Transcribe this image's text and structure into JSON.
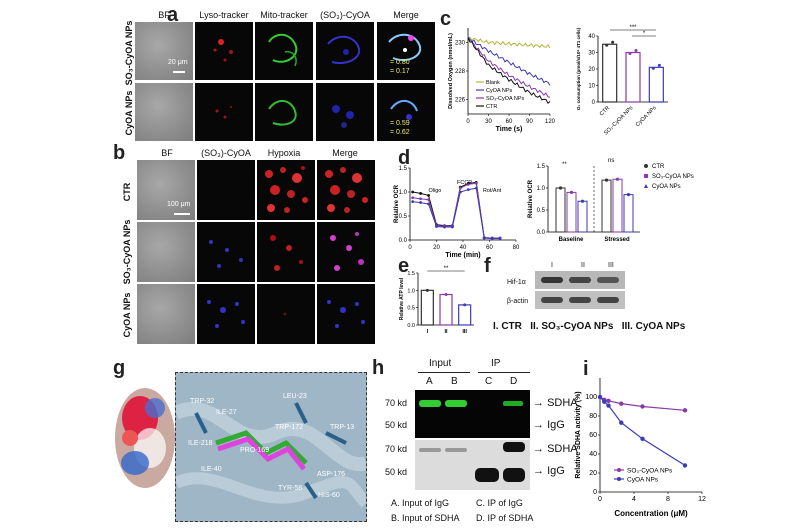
{
  "panel_a": {
    "label": "a",
    "headers": [
      "BF",
      "Lyso-tracker",
      "Mito-tracker",
      "(SO₃)-CyOA",
      "Merge"
    ],
    "rows": [
      "SO₃-CyOA NPs",
      "CyOA NPs"
    ],
    "scale_bar": "20 μm",
    "coloc_row1": [
      "= 0.80",
      "= 0.17"
    ],
    "coloc_row2": [
      "= 0.59",
      "= 0.62"
    ]
  },
  "panel_b": {
    "label": "b",
    "headers": [
      "BF",
      "(SO₃)-CyOA",
      "Hypoxia",
      "Merge"
    ],
    "rows": [
      "CTR",
      "SO₃-CyOA NPs",
      "CyOA NPs"
    ],
    "scale_bar": "100 μm"
  },
  "panel_c": {
    "label": "c"
  },
  "panel_d": {
    "label": "d"
  },
  "panel_e": {
    "label": "e"
  },
  "panel_f": {
    "label": "f",
    "lanes": [
      "I",
      "II",
      "III"
    ],
    "bands": [
      "Hif-1α",
      "β-actin"
    ],
    "caption": "I. CTR   II. SO₃-CyOA NPs   III. CyOA NPs"
  },
  "panel_g": {
    "label": "g",
    "residues": [
      "TRP-32",
      "ILE-27",
      "LEU-23",
      "TRP-172",
      "TRP-13",
      "ILE-218",
      "PRO-169",
      "ILE-40",
      "ASP-176",
      "TYR-58",
      "HIS-60"
    ]
  },
  "panel_h": {
    "label": "h",
    "group_input": "Input",
    "group_ip": "IP",
    "lanes": [
      "A",
      "B",
      "C",
      "D"
    ],
    "markers": [
      "70 kd",
      "50 kd",
      "70 kd",
      "50 kd"
    ],
    "arrows": [
      "SDHA",
      "IgG",
      "SDHA",
      "IgG"
    ],
    "legend": [
      "A. Input of IgG",
      "B. Input of SDHA",
      "C. IP of IgG",
      "D. IP of SDHA"
    ]
  },
  "panel_i": {
    "label": "i"
  },
  "chart_data": [
    {
      "panel": "c-left",
      "type": "line",
      "xlabel": "Time (s)",
      "ylabel": "Dissolved Oxygen (nmol/mL)",
      "xlim": [
        0,
        120
      ],
      "ylim": [
        225,
        231
      ],
      "xticks": [
        0,
        30,
        60,
        90,
        120
      ],
      "yticks": [
        226,
        228,
        230
      ],
      "series": [
        {
          "name": "Blank",
          "color": "#b4b43a",
          "x": [
            0,
            30,
            60,
            90,
            120
          ],
          "y": [
            230.3,
            230.0,
            229.9,
            229.8,
            229.7
          ]
        },
        {
          "name": "CyOA NPs",
          "color": "#3b3bb5",
          "x": [
            0,
            30,
            60,
            90,
            120
          ],
          "y": [
            230.3,
            229.4,
            228.6,
            227.8,
            227.1
          ]
        },
        {
          "name": "SO₃-CyOA NPs",
          "color": "#8a3aa8",
          "x": [
            0,
            30,
            60,
            90,
            120
          ],
          "y": [
            230.3,
            228.7,
            227.7,
            226.9,
            226.2
          ]
        },
        {
          "name": "CTR",
          "color": "#111111",
          "x": [
            0,
            30,
            60,
            90,
            120
          ],
          "y": [
            230.3,
            228.4,
            227.4,
            226.5,
            225.8
          ]
        }
      ]
    },
    {
      "panel": "c-right",
      "type": "bar",
      "ylabel": "O₂ consumption (pmol/s/10⁶ 4T1 cells)",
      "categories": [
        "CTR",
        "SO₃-CyOA NPs",
        "CyOA NPs"
      ],
      "values": [
        35,
        30,
        21
      ],
      "ylim": [
        0,
        40
      ],
      "yticks": [
        0,
        10,
        20,
        30,
        40
      ],
      "significance": [
        "***",
        "*"
      ]
    },
    {
      "panel": "d-left",
      "type": "line",
      "xlabel": "Time (min)",
      "ylabel": "Relative OCR",
      "xlim": [
        0,
        80
      ],
      "ylim": [
        0,
        1.5
      ],
      "xticks": [
        0,
        20,
        40,
        60,
        80
      ],
      "yticks": [
        0.0,
        0.5,
        1.0,
        1.5
      ],
      "annotations": [
        "Oligo",
        "FCCP",
        "Rot/Ant"
      ],
      "series": [
        {
          "name": "CTR",
          "color": "#111111",
          "x": [
            2,
            8,
            14,
            20,
            26,
            32,
            38,
            44,
            50,
            56,
            62,
            68
          ],
          "y": [
            1.0,
            0.97,
            0.93,
            0.32,
            0.3,
            0.3,
            1.1,
            1.18,
            1.2,
            0.05,
            0.04,
            0.04
          ]
        },
        {
          "name": "SO₃-CyOA NPs",
          "color": "#8a3aa8",
          "x": [
            2,
            8,
            14,
            20,
            26,
            32,
            38,
            44,
            50,
            56,
            62,
            68
          ],
          "y": [
            0.88,
            0.86,
            0.84,
            0.3,
            0.29,
            0.29,
            1.08,
            1.16,
            1.18,
            0.05,
            0.04,
            0.04
          ]
        },
        {
          "name": "CyOA NPs",
          "color": "#3b3bb5",
          "x": [
            2,
            8,
            14,
            20,
            26,
            32,
            38,
            44,
            50,
            56,
            62,
            68
          ],
          "y": [
            0.8,
            0.78,
            0.75,
            0.28,
            0.27,
            0.27,
            1.0,
            1.05,
            1.08,
            0.04,
            0.03,
            0.03
          ]
        }
      ]
    },
    {
      "panel": "d-right",
      "type": "bar",
      "ylabel": "Relative OCR",
      "categories": [
        "Baseline",
        "Stressed"
      ],
      "ylim": [
        0,
        1.5
      ],
      "yticks": [
        0.0,
        0.5,
        1.0,
        1.5
      ],
      "series": [
        {
          "name": "CTR",
          "color": "#333333",
          "values": [
            1.0,
            1.18
          ]
        },
        {
          "name": "SO₃-CyOA NPs",
          "color": "#8a3aa8",
          "values": [
            0.9,
            1.2
          ]
        },
        {
          "name": "CyOA NPs",
          "color": "#3b3bb5",
          "values": [
            0.7,
            0.85
          ]
        }
      ],
      "significance": [
        "**",
        "**",
        "ns"
      ]
    },
    {
      "panel": "e",
      "type": "bar",
      "ylabel": "Relative ATP level",
      "categories": [
        "I",
        "II",
        "III"
      ],
      "values": [
        1.0,
        0.88,
        0.58
      ],
      "ylim": [
        0,
        1.5
      ],
      "yticks": [
        0.0,
        0.5,
        1.0,
        1.5
      ],
      "colors": [
        "#333333",
        "#8a3aa8",
        "#3b3bb5"
      ],
      "significance": [
        "**"
      ]
    },
    {
      "panel": "i",
      "type": "scatter",
      "xlabel": "Concentration  (μM)",
      "ylabel": "Relative SDHA activity (%)",
      "xlim": [
        0,
        12
      ],
      "ylim": [
        0,
        120
      ],
      "xticks": [
        0,
        4,
        8,
        12
      ],
      "yticks": [
        0,
        20,
        40,
        60,
        80,
        100
      ],
      "series": [
        {
          "name": "SO₃-CyOA NPs",
          "color": "#8a3aa8",
          "x": [
            0,
            0.5,
            1,
            2.5,
            5,
            10
          ],
          "y": [
            100,
            97,
            96,
            93,
            90,
            86
          ]
        },
        {
          "name": "CyOA NPs",
          "color": "#3b3bb5",
          "x": [
            0,
            0.5,
            1,
            2.5,
            5,
            10
          ],
          "y": [
            100,
            95,
            91,
            73,
            56,
            28
          ]
        }
      ]
    }
  ]
}
